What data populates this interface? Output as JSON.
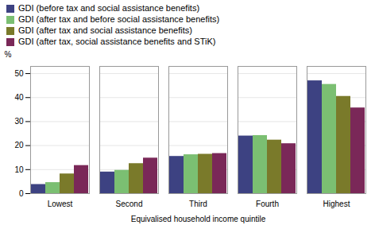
{
  "chart_data": {
    "type": "bar",
    "categories": [
      "Lowest",
      "Second",
      "Third",
      "Fourth",
      "Highest"
    ],
    "series": [
      {
        "name": "GDI (before tax and social assistance benefits)",
        "color": "#3d4282",
        "values": [
          3.8,
          9.0,
          15.5,
          24.0,
          47.0
        ]
      },
      {
        "name": "GDI (after tax and before social assistance benefits)",
        "color": "#7bbf72",
        "values": [
          4.6,
          9.7,
          16.2,
          24.2,
          45.5
        ]
      },
      {
        "name": "GDI (after tax and social assistance benefits)",
        "color": "#7a7a2a",
        "values": [
          8.2,
          12.5,
          16.4,
          22.3,
          40.5
        ]
      },
      {
        "name": "GDI (after tax, social assistance benefits and STiK)",
        "color": "#7a2858",
        "values": [
          11.7,
          14.8,
          16.7,
          20.8,
          35.7
        ]
      }
    ],
    "ylabel": "%",
    "xlabel": "Equivalised household income quintile",
    "ylim": [
      0,
      53
    ],
    "yticks": [
      0,
      10,
      20,
      30,
      40,
      50
    ],
    "grid": true,
    "legend": "upper left"
  }
}
